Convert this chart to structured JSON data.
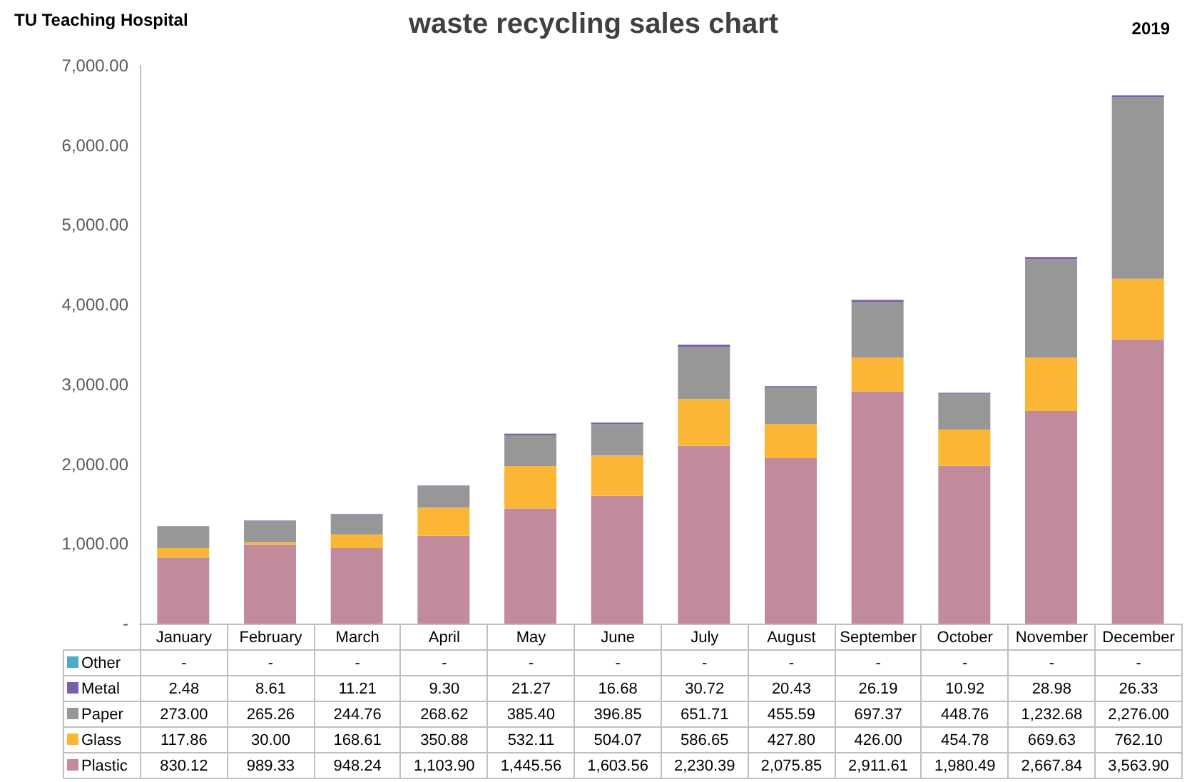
{
  "chart_data": {
    "type": "bar",
    "title": "waste recycling sales chart",
    "annotations": [
      "TU Teaching Hospital",
      "2019"
    ],
    "categories": [
      "January",
      "February",
      "March",
      "April",
      "May",
      "June",
      "July",
      "August",
      "September",
      "October",
      "November",
      "December"
    ],
    "stacked": true,
    "series": [
      {
        "name": "Plastic",
        "color": "#c18b9b",
        "values": [
          830.12,
          989.33,
          948.24,
          1103.9,
          1445.56,
          1603.56,
          2230.39,
          2075.85,
          2911.61,
          1980.49,
          2667.84,
          3563.9
        ],
        "value_labels": [
          "830.12",
          "989.33",
          "948.24",
          "1,103.90",
          "1,445.56",
          "1,603.56",
          "2,230.39",
          "2,075.85",
          "2,911.61",
          "1,980.49",
          "2,667.84",
          "3,563.90"
        ]
      },
      {
        "name": "Glass",
        "color": "#fbb635",
        "values": [
          117.86,
          30.0,
          168.61,
          350.88,
          532.11,
          504.07,
          586.65,
          427.8,
          426.0,
          454.78,
          669.63,
          762.1
        ],
        "value_labels": [
          "117.86",
          "30.00",
          "168.61",
          "350.88",
          "532.11",
          "504.07",
          "586.65",
          "427.80",
          "426.00",
          "454.78",
          "669.63",
          "762.10"
        ]
      },
      {
        "name": "Paper",
        "color": "#979797",
        "values": [
          273.0,
          265.26,
          244.76,
          268.62,
          385.4,
          396.85,
          651.71,
          455.59,
          697.37,
          448.76,
          1232.68,
          2276.0
        ],
        "value_labels": [
          "273.00",
          "265.26",
          "244.76",
          "268.62",
          "385.40",
          "396.85",
          "651.71",
          "455.59",
          "697.37",
          "448.76",
          "1,232.68",
          "2,276.00"
        ]
      },
      {
        "name": "Metal",
        "color": "#7b5ea8",
        "values": [
          2.48,
          8.61,
          11.21,
          9.3,
          21.27,
          16.68,
          30.72,
          20.43,
          26.19,
          10.92,
          28.98,
          26.33
        ],
        "value_labels": [
          "2.48",
          "8.61",
          "11.21",
          "9.30",
          "21.27",
          "16.68",
          "30.72",
          "20.43",
          "26.19",
          "10.92",
          "28.98",
          "26.33"
        ]
      },
      {
        "name": "Other",
        "color": "#4bacc6",
        "values": [
          null,
          null,
          null,
          null,
          null,
          null,
          null,
          null,
          null,
          null,
          null,
          null
        ],
        "value_labels": [
          "-",
          "-",
          "-",
          "-",
          "-",
          "-",
          "-",
          "-",
          "-",
          "-",
          "-",
          "-"
        ]
      }
    ],
    "ylim": [
      0,
      7000
    ],
    "yticks": [
      {
        "value": 0,
        "label": "-"
      },
      {
        "value": 1000,
        "label": "1,000.00"
      },
      {
        "value": 2000,
        "label": "2,000.00"
      },
      {
        "value": 3000,
        "label": "3,000.00"
      },
      {
        "value": 4000,
        "label": "4,000.00"
      },
      {
        "value": 5000,
        "label": "5,000.00"
      },
      {
        "value": 6000,
        "label": "6,000.00"
      },
      {
        "value": 7000,
        "label": "7,000.00"
      }
    ],
    "legend": "bottom"
  }
}
